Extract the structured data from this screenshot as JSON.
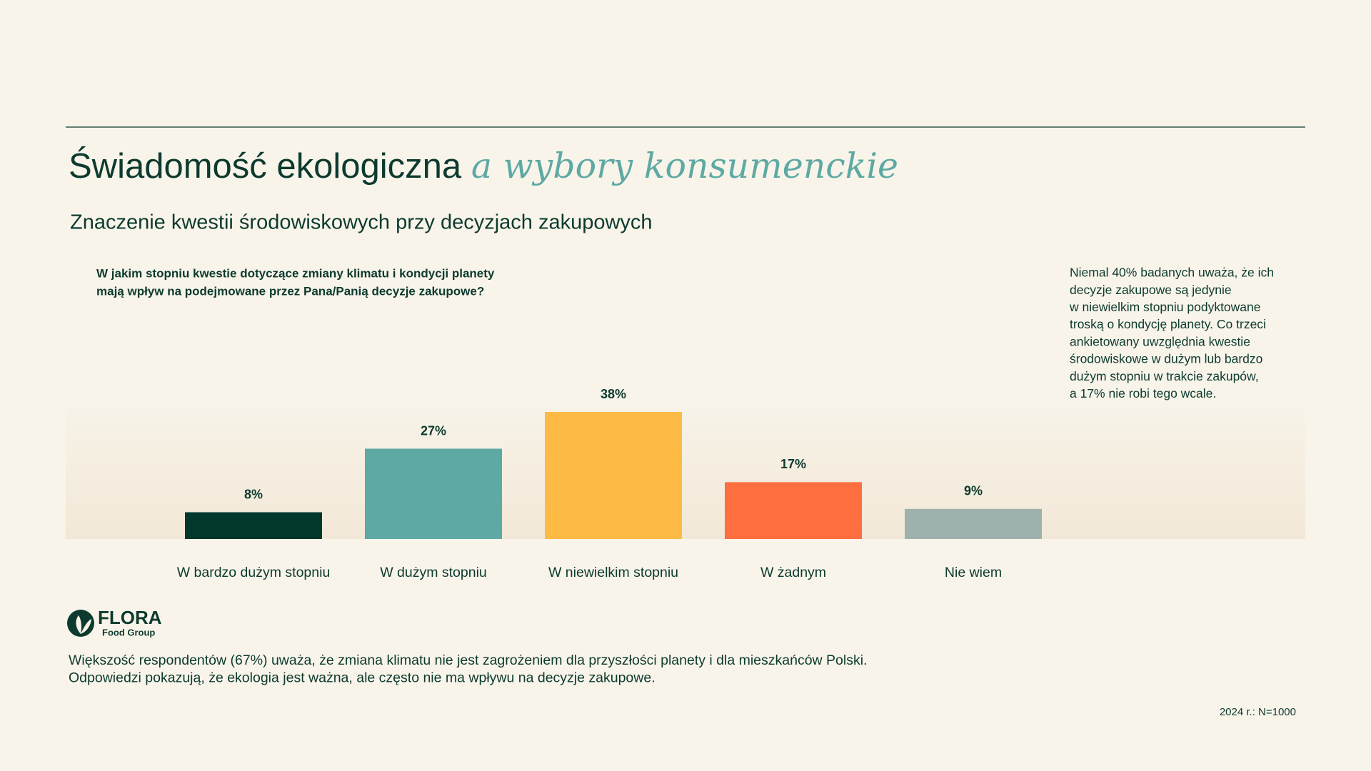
{
  "header": {
    "title_main": "Świadomość ekologiczna",
    "title_accent": "a wybory konsumenckie",
    "subtitle": "Znaczenie kwestii środowiskowych przy decyzjach zakupowych"
  },
  "chart_data": {
    "type": "bar",
    "question": [
      "W jakim stopniu kwestie dotyczące zmiany klimatu i kondycji planety",
      "mają wpływ na podejmowane przez Pana/Panią decyzje zakupowe?"
    ],
    "categories": [
      "W bardzo dużym stopniu",
      "W dużym stopniu",
      "W niewielkim stopniu",
      "W żadnym",
      "Nie wiem"
    ],
    "values": [
      8,
      27,
      38,
      17,
      9
    ],
    "value_labels": [
      "8%",
      "27%",
      "38%",
      "17%",
      "9%"
    ],
    "colors": [
      "#02372b",
      "#5ea9a3",
      "#fdbb45",
      "#ff6e3e",
      "#9fb1ad"
    ]
  },
  "note": [
    "Niemal 40% badanych uważa, że ich",
    "decyzje zakupowe są jedynie",
    "w niewielkim stopniu podyktowane",
    "troską o kondycję planety. Co trzeci",
    "ankietowany uwzględnia kwestie",
    "środowiskowe w dużym lub bardzo",
    "dużym stopniu w trakcie zakupów,",
    "a 17% nie robi tego wcale."
  ],
  "logo": {
    "name": "FLORA",
    "tagline": "Food Group"
  },
  "footer": {
    "lines": [
      "Większość respondentów (67%) uważa, że zmiana klimatu nie jest zagrożeniem dla przyszłości planety i dla mieszkańców Polski.",
      "Odpowiedzi pokazują, że ekologia jest ważna, ale często nie ma wpływu na decyzje zakupowe."
    ],
    "sample": "2024 r.: N=1000"
  }
}
